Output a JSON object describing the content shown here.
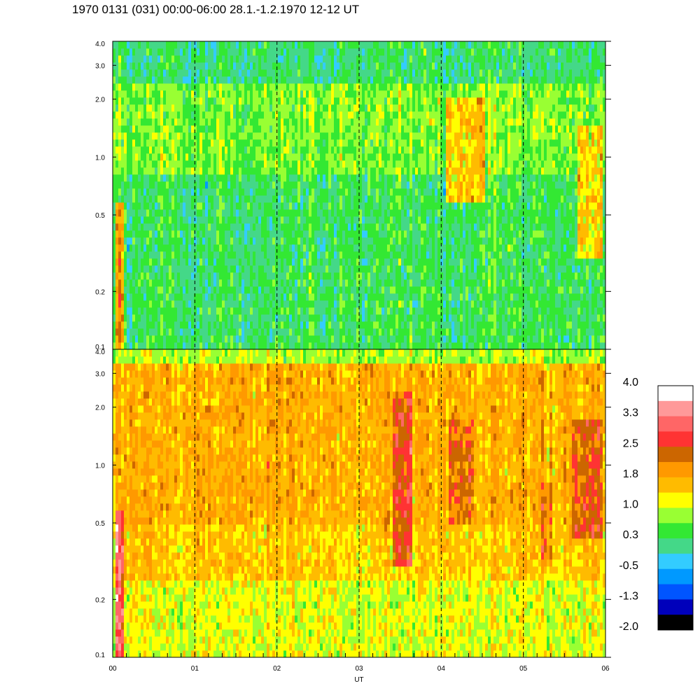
{
  "title": "1970 0131 (031) 00:00-06:00 28.1.-1.2.1970  12-12 UT",
  "chart_data": [
    {
      "type": "heatmap",
      "panel": "upper",
      "x_ticks": [
        "00",
        "01",
        "02",
        "03",
        "04",
        "05",
        "06"
      ],
      "y_ticks": [
        "0.1",
        "0.2",
        "0.5",
        "1.0",
        "2.0",
        "3.0",
        "4.0"
      ],
      "y_scale": "log",
      "xlim": [
        0,
        6
      ],
      "ylim": [
        0.1,
        4.0
      ],
      "dashed_verticals_at": [
        1,
        2,
        3,
        4,
        5
      ],
      "dominant_level_by_band": [
        {
          "y_range": [
            0.1,
            0.8
          ],
          "level": 0.3
        },
        {
          "y_range": [
            0.8,
            2.5
          ],
          "level": 0.7
        },
        {
          "y_range": [
            2.5,
            4.0
          ],
          "level": 0.2
        }
      ],
      "enhancements": [
        {
          "x_range": [
            0.05,
            0.15
          ],
          "y_range": [
            0.1,
            0.6
          ],
          "level": 1.8
        },
        {
          "x_range": [
            4.05,
            4.55
          ],
          "y_range": [
            0.6,
            2.0
          ],
          "level": 1.5
        },
        {
          "x_range": [
            5.65,
            5.95
          ],
          "y_range": [
            0.3,
            1.5
          ],
          "level": 1.4
        }
      ]
    },
    {
      "type": "heatmap",
      "panel": "lower",
      "x_ticks": [
        "00",
        "01",
        "02",
        "03",
        "04",
        "05",
        "06"
      ],
      "y_ticks": [
        "0.1",
        "0.2",
        "0.5",
        "1.0",
        "2.0",
        "3.0",
        "4.0"
      ],
      "y_scale": "log",
      "xlim": [
        0,
        6
      ],
      "ylim": [
        0.1,
        4.0
      ],
      "xlabel": "UT",
      "dashed_verticals_at": [
        1,
        2,
        3,
        4,
        5
      ],
      "dominant_level_by_band": [
        {
          "y_range": [
            0.1,
            0.25
          ],
          "level": 1.1
        },
        {
          "y_range": [
            0.25,
            0.5
          ],
          "level": 1.5
        },
        {
          "y_range": [
            0.5,
            3.5
          ],
          "level": 1.7
        },
        {
          "y_range": [
            3.5,
            4.0
          ],
          "level": 0.9
        }
      ],
      "enhancements": [
        {
          "x_range": [
            0.05,
            0.15
          ],
          "y_range": [
            0.1,
            0.6
          ],
          "level": 3.0
        },
        {
          "x_range": [
            3.4,
            3.65
          ],
          "y_range": [
            0.3,
            2.5
          ],
          "level": 2.6
        },
        {
          "x_range": [
            4.1,
            4.4
          ],
          "y_range": [
            0.5,
            1.8
          ],
          "level": 2.2
        },
        {
          "x_range": [
            5.2,
            5.35
          ],
          "y_range": [
            0.3,
            0.8
          ],
          "level": 2.2
        },
        {
          "x_range": [
            5.6,
            5.95
          ],
          "y_range": [
            0.4,
            1.8
          ],
          "level": 2.3
        }
      ]
    }
  ],
  "colorbar": {
    "labels": [
      "4.0",
      "3.3",
      "2.5",
      "1.8",
      "1.0",
      "0.3",
      "-0.5",
      "-1.3",
      "-2.0"
    ],
    "colors": [
      "#ffffff",
      "#ff9999",
      "#ff6666",
      "#ff3333",
      "#cc6600",
      "#ff9900",
      "#ffbb00",
      "#ffff00",
      "#99ff33",
      "#33e833",
      "#44d888",
      "#33ccff",
      "#0099ff",
      "#0055ff",
      "#0000bb",
      "#000000"
    ]
  }
}
